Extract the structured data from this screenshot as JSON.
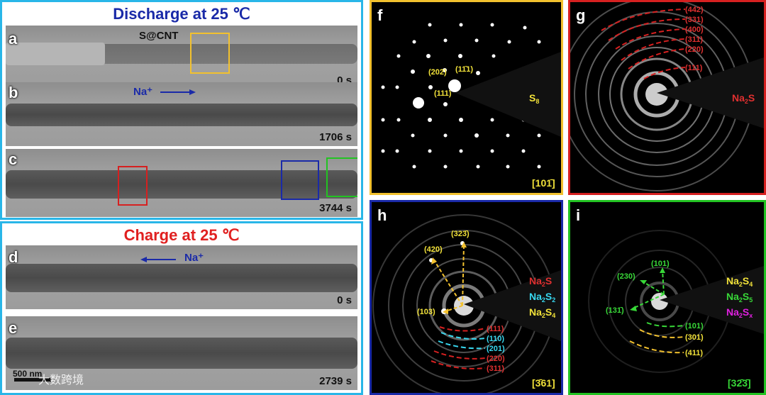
{
  "left": {
    "discharge_title": "Discharge at 25 ℃",
    "charge_title": "Charge at 25 ℃",
    "panels": [
      {
        "letter": "a",
        "time": "0 s",
        "annotation": "S@CNT"
      },
      {
        "letter": "b",
        "time": "1706 s",
        "annotation": "Na⁺"
      },
      {
        "letter": "c",
        "time": "3744 s"
      },
      {
        "letter": "d",
        "time": "0 s",
        "annotation": "Na⁺"
      },
      {
        "letter": "e",
        "time": "2739 s",
        "scalebar": "500 nm"
      }
    ],
    "watermark": "大数跨境"
  },
  "saed": {
    "f": {
      "letter": "f",
      "phase": "S8",
      "zone": "[101̄]",
      "labels": [
        "(202)",
        "(11̄1)",
        "(111)"
      ]
    },
    "g": {
      "letter": "g",
      "phase": "Na2S",
      "zone": "",
      "labels": [
        "(442)",
        "(331)",
        "(400)",
        "(311)",
        "(220)",
        "(111)"
      ]
    },
    "h": {
      "letter": "h",
      "phase_lines": [
        "Na2S",
        "Na2S2",
        "Na2S4"
      ],
      "zone": "[3̄61]",
      "yellow_labels": [
        "(323̄)",
        "(420)",
        "(103)"
      ],
      "ring_labels": [
        "(111)",
        "(110)",
        "(201)",
        "(220)",
        "(311)"
      ]
    },
    "i": {
      "letter": "i",
      "phase_lines": [
        "Na2S4",
        "Na2S5",
        "Na2Sx"
      ],
      "zone": "[32̄3̄]",
      "green_labels": [
        "(101)",
        "(230)",
        "(131̄)",
        "(101)"
      ],
      "yellow_labels": [
        "(301)",
        "(411)"
      ]
    }
  },
  "colors": {
    "cyan_border": "#29b6e8",
    "yellow_border": "#f2c12e",
    "red_border": "#d62020",
    "blue_border": "#1a2aa8",
    "green_border": "#22c322",
    "discharge_title": "#1a2aa8",
    "charge_title": "#e02020"
  }
}
